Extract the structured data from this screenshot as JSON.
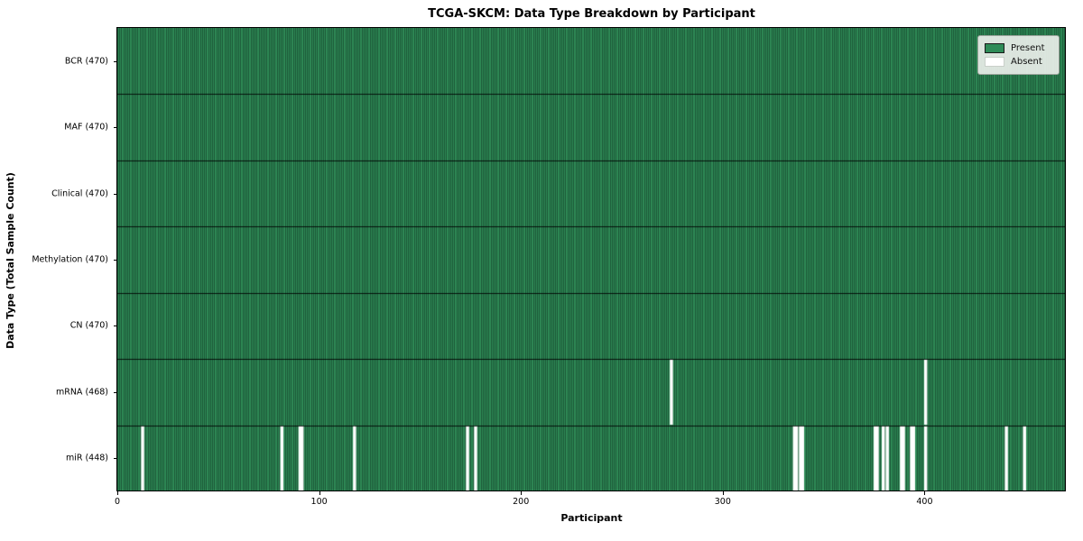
{
  "chart_data": {
    "type": "heatmap",
    "title": "TCGA-SKCM: Data Type Breakdown by Participant",
    "xlabel": "Participant",
    "ylabel": "Data Type (Total Sample Count)",
    "n_participants": 470,
    "x_ticks": [
      0,
      100,
      200,
      300,
      400
    ],
    "rows": [
      {
        "label": "BCR (470)",
        "data_type": "BCR",
        "total_samples": 470,
        "absent_participants": []
      },
      {
        "label": "MAF (470)",
        "data_type": "MAF",
        "total_samples": 470,
        "absent_participants": []
      },
      {
        "label": "Clinical (470)",
        "data_type": "Clinical",
        "total_samples": 470,
        "absent_participants": []
      },
      {
        "label": "Methylation (470)",
        "data_type": "Methylation",
        "total_samples": 470,
        "absent_participants": []
      },
      {
        "label": "CN (470)",
        "data_type": "CN",
        "total_samples": 470,
        "absent_participants": []
      },
      {
        "label": "mRNA (468)",
        "data_type": "mRNA",
        "total_samples": 468,
        "absent_participants": [
          274,
          400
        ]
      },
      {
        "label": "miR (448)",
        "data_type": "miR",
        "total_samples": 448,
        "absent_participants": [
          12,
          81,
          90,
          91,
          117,
          173,
          177,
          335,
          336,
          338,
          339,
          375,
          376,
          379,
          381,
          388,
          389,
          393,
          394,
          400,
          440,
          449
        ]
      }
    ],
    "legend": [
      {
        "label": "Present",
        "color": "#2e8b57"
      },
      {
        "label": "Absent",
        "color": "#ffffff"
      }
    ],
    "colors": {
      "present": "#2e8b57",
      "absent": "#ffffff",
      "cell_edge": "rgba(0,0,0,0.38)",
      "row_edge": "rgba(0,0,0,0.85)",
      "axis": "#000000"
    },
    "legend_position": "upper right",
    "grid": false
  }
}
